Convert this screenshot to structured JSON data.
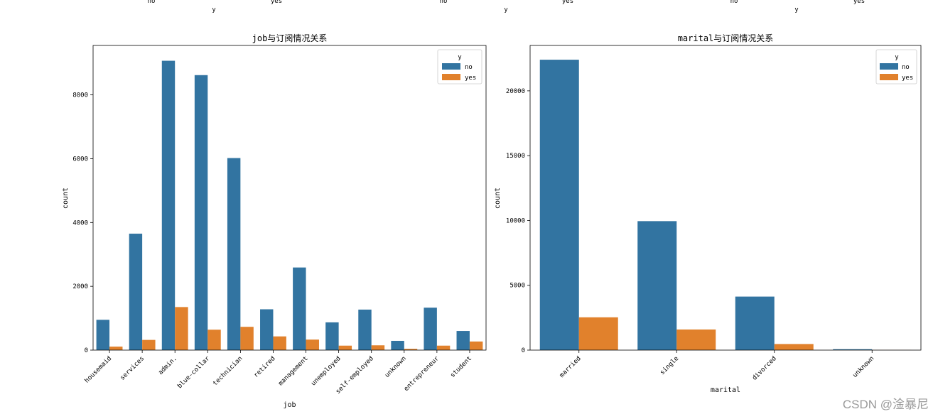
{
  "top_strip": {
    "labels": [
      "no",
      "y",
      "yes",
      "no",
      "y",
      "yes",
      "no",
      "y",
      "yes"
    ]
  },
  "colors": {
    "no": "#3274a1",
    "yes": "#e1812c"
  },
  "watermark": "CSDN @淦暴尼",
  "chart_data": [
    {
      "type": "bar",
      "title": "job与订阅情况关系",
      "xlabel": "job",
      "ylabel": "count",
      "categories": [
        "housemaid",
        "services",
        "admin.",
        "blue-collar",
        "technician",
        "retired",
        "management",
        "unemployed",
        "self-employed",
        "unknown",
        "entrepreneur",
        "student"
      ],
      "series": [
        {
          "name": "no",
          "values": [
            950,
            3650,
            9070,
            8620,
            6020,
            1280,
            2590,
            870,
            1270,
            290,
            1330,
            600
          ]
        },
        {
          "name": "yes",
          "values": [
            110,
            320,
            1350,
            640,
            730,
            430,
            330,
            140,
            150,
            40,
            140,
            270
          ]
        }
      ],
      "ylim": [
        0,
        9550
      ],
      "yticks": [
        0,
        2000,
        4000,
        6000,
        8000
      ],
      "legend": {
        "title": "y",
        "placement": "top-right"
      }
    },
    {
      "type": "bar",
      "title": "marital与订阅情况关系",
      "xlabel": "marital",
      "ylabel": "count",
      "categories": [
        "married",
        "single",
        "divorced",
        "unknown"
      ],
      "series": [
        {
          "name": "no",
          "values": [
            22400,
            9950,
            4130,
            70
          ]
        },
        {
          "name": "yes",
          "values": [
            2530,
            1590,
            470,
            10
          ]
        }
      ],
      "ylim": [
        0,
        23500
      ],
      "yticks": [
        0,
        5000,
        10000,
        15000,
        20000
      ],
      "legend": {
        "title": "y",
        "placement": "top-right"
      }
    }
  ]
}
